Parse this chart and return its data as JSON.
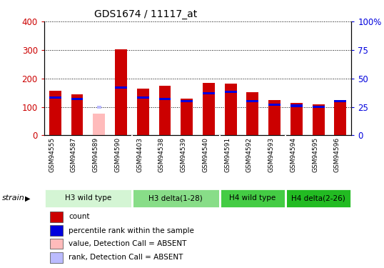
{
  "title": "GDS1674 / 11117_at",
  "samples": [
    "GSM94555",
    "GSM94587",
    "GSM94589",
    "GSM94590",
    "GSM94403",
    "GSM94538",
    "GSM94539",
    "GSM94540",
    "GSM94591",
    "GSM94592",
    "GSM94593",
    "GSM94594",
    "GSM94595",
    "GSM94596"
  ],
  "red_values": [
    157,
    143,
    0,
    302,
    165,
    175,
    128,
    183,
    182,
    152,
    125,
    113,
    110,
    124
  ],
  "blue_pct": [
    33,
    32,
    0,
    42,
    33,
    32,
    30,
    37,
    38,
    30,
    27,
    26,
    25,
    30
  ],
  "absent_value": 75,
  "absent_rank_pct": 25,
  "absent_index": 2,
  "groups": [
    {
      "label": "H3 wild type",
      "start": 0,
      "end": 3,
      "color": "#d4f5d4"
    },
    {
      "label": "H3 delta(1-28)",
      "start": 4,
      "end": 7,
      "color": "#88dd88"
    },
    {
      "label": "H4 wild type",
      "start": 8,
      "end": 10,
      "color": "#44cc44"
    },
    {
      "label": "H4 delta(2-26)",
      "start": 11,
      "end": 13,
      "color": "#22bb22"
    }
  ],
  "left_ylim": [
    0,
    400
  ],
  "right_ylim": [
    0,
    100
  ],
  "left_yticks": [
    0,
    100,
    200,
    300,
    400
  ],
  "right_yticks": [
    0,
    25,
    50,
    75,
    100
  ],
  "right_yticklabels": [
    "0",
    "25",
    "50",
    "75",
    "100%"
  ],
  "bar_color_red": "#cc0000",
  "bar_color_blue": "#0000dd",
  "bar_color_pink": "#ffbbbb",
  "bar_color_lightblue": "#bbbbff",
  "plot_bg": "#ffffff",
  "xtick_bg": "#d8d8d8",
  "group_bg": "#f0f0f0",
  "strain_label": "strain",
  "bar_width": 0.55,
  "scale": 4.0
}
